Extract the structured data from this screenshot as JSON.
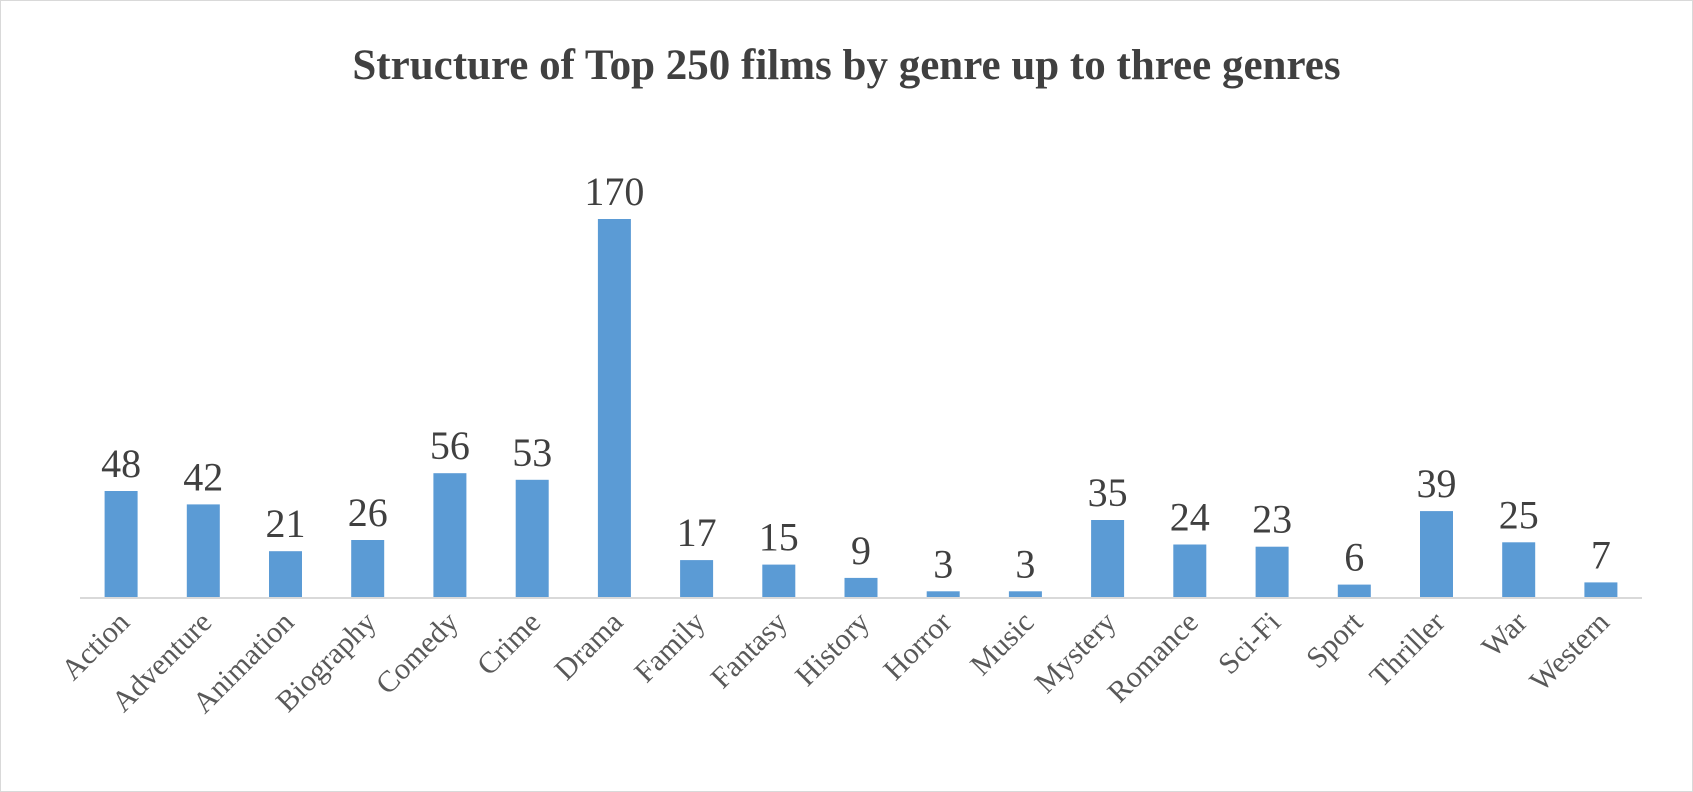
{
  "chart_data": {
    "type": "bar",
    "title": "Structure of Top 250 films by genre up to three genres",
    "xlabel": "",
    "ylabel": "",
    "categories": [
      "Action",
      "Adventure",
      "Animation",
      "Biography",
      "Comedy",
      "Crime",
      "Drama",
      "Family",
      "Fantasy",
      "History",
      "Horror",
      "Music",
      "Mystery",
      "Romance",
      "Sci-Fi",
      "Sport",
      "Thriller",
      "War",
      "Western"
    ],
    "values": [
      48,
      42,
      21,
      26,
      56,
      53,
      170,
      17,
      15,
      9,
      3,
      3,
      35,
      24,
      23,
      6,
      39,
      25,
      7
    ],
    "ylim": [
      0,
      170
    ],
    "bar_color": "#5b9bd5",
    "grid": false,
    "legend": "none",
    "data_labels": true
  }
}
